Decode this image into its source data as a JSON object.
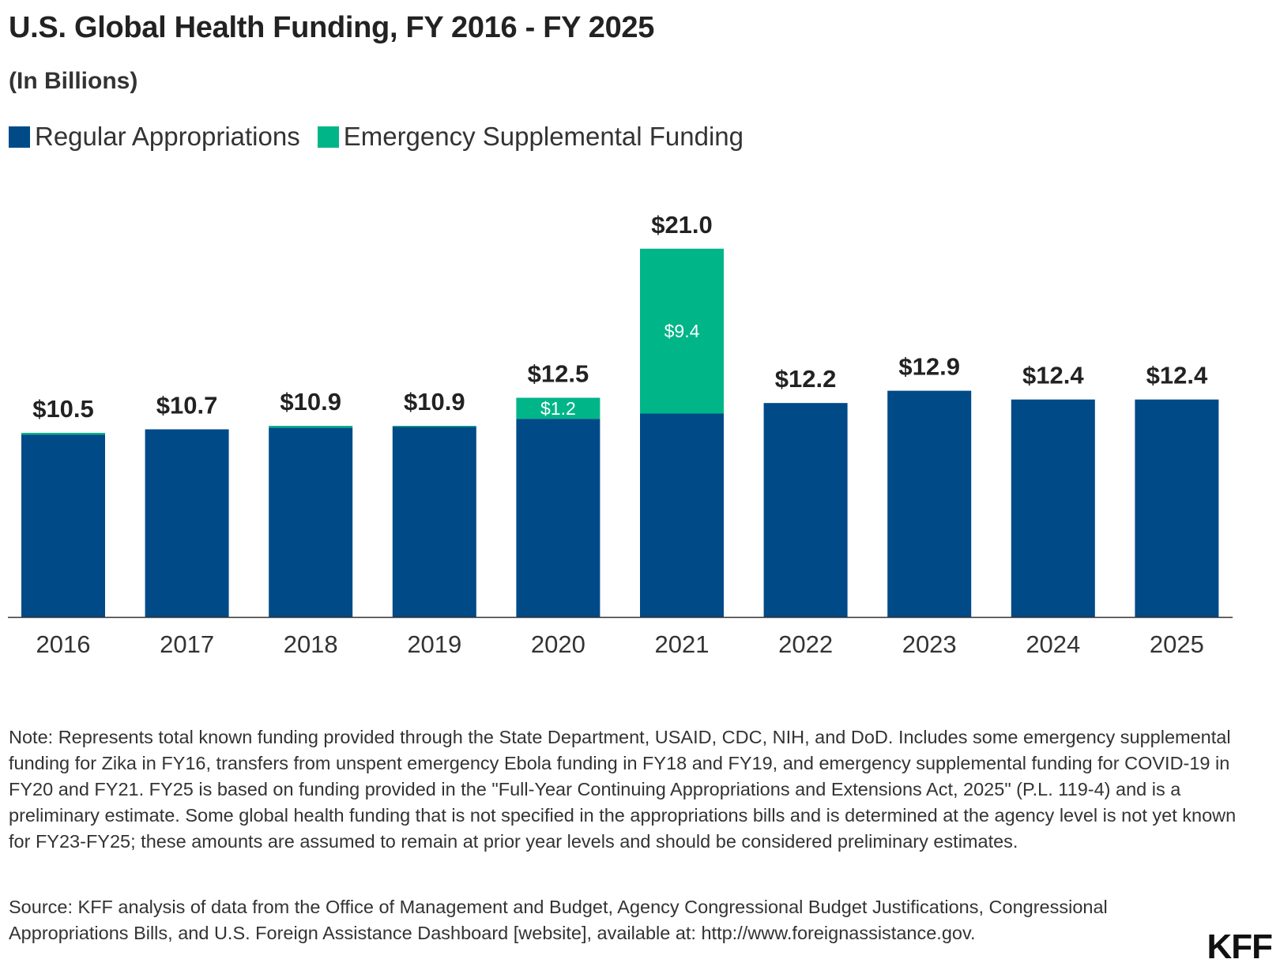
{
  "colors": {
    "regular": "#004a87",
    "emergency": "#00b588",
    "axis": "#333333"
  },
  "chart_data": {
    "type": "bar",
    "stacked": true,
    "title": "U.S. Global Health Funding, FY 2016 - FY 2025",
    "subtitle": "(In Billions)",
    "categories": [
      "2016",
      "2017",
      "2018",
      "2019",
      "2020",
      "2021",
      "2022",
      "2023",
      "2024",
      "2025"
    ],
    "series": [
      {
        "name": "Regular Appropriations",
        "values": [
          10.4,
          10.7,
          10.8,
          10.85,
          11.3,
          11.6,
          12.2,
          12.9,
          12.4,
          12.4
        ]
      },
      {
        "name": "Emergency Supplemental Funding",
        "values": [
          0.1,
          0,
          0.1,
          0.05,
          1.2,
          9.4,
          0,
          0,
          0,
          0
        ]
      }
    ],
    "totals": [
      10.5,
      10.7,
      10.9,
      10.9,
      12.5,
      21.0,
      12.2,
      12.9,
      12.4,
      12.4
    ],
    "total_labels": [
      "$10.5",
      "$10.7",
      "$10.9",
      "$10.9",
      "$12.5",
      "$21.0",
      "$12.2",
      "$12.9",
      "$12.4",
      "$12.4"
    ],
    "segment_labels": [
      {
        "category": "2020",
        "text": "$1.2"
      },
      {
        "category": "2021",
        "text": "$9.4"
      }
    ],
    "ylim": [
      0,
      24
    ],
    "xlabel": "",
    "ylabel": "",
    "grid": false,
    "legend": "top-left"
  },
  "legend": {
    "regular_label": "Regular Appropriations",
    "emergency_label": "Emergency Supplemental Funding"
  },
  "footer": {
    "note": "Note: Represents total known funding provided through the State Department, USAID, CDC, NIH, and DoD. Includes some emergency supplemental funding for Zika in FY16, transfers from unspent emergency Ebola funding in FY18 and FY19, and emergency supplemental funding for COVID-19 in FY20 and FY21. FY25 is based on funding provided in the \"Full-Year Continuing Appropriations and Extensions Act, 2025\" (P.L. 119-4) and is a preliminary estimate. Some global health funding that is not specified in the appropriations bills and is determined at the agency level is not yet known for FY23-FY25; these amounts are assumed to remain at prior year levels and should be considered preliminary estimates.",
    "source": "Source: KFF analysis of data from the Office of Management and Budget, Agency Congressional Budget Justifications, Congressional Appropriations Bills, and U.S. Foreign Assistance Dashboard [website], available at: http://www.foreignassistance.gov.",
    "logo": "KFF"
  }
}
